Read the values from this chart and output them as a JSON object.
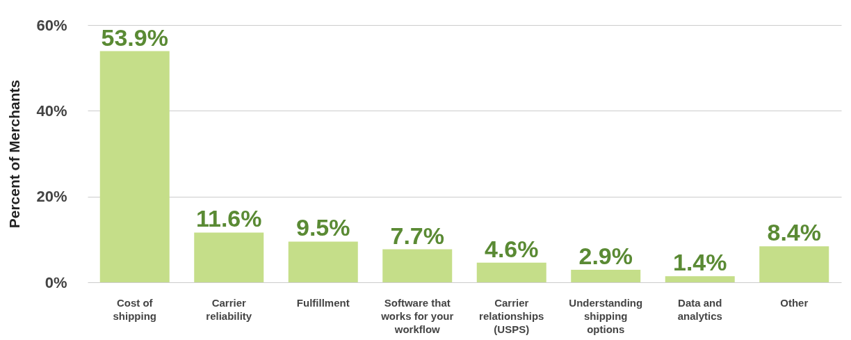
{
  "chart_data": {
    "type": "bar",
    "ylabel": "Percent of Merchants",
    "categories": [
      "Cost of shipping",
      "Carrier reliability",
      "Fulfillment",
      "Software that works for your workflow",
      "Carrier relationships (USPS)",
      "Understanding shipping options",
      "Data and analytics",
      "Other"
    ],
    "values": [
      53.9,
      11.6,
      9.5,
      7.7,
      4.6,
      2.9,
      1.4,
      8.4
    ],
    "value_labels": [
      "53.9%",
      "11.6%",
      "9.5%",
      "7.7%",
      "4.6%",
      "2.9%",
      "1.4%",
      "8.4%"
    ],
    "color": "#c5de89",
    "ylim": [
      0,
      60
    ],
    "yticks": [
      {
        "value": 0,
        "label": "0%"
      },
      {
        "value": 20,
        "label": "20%"
      },
      {
        "value": 40,
        "label": "40%"
      },
      {
        "value": 60,
        "label": "60%"
      }
    ],
    "grid": "y"
  }
}
